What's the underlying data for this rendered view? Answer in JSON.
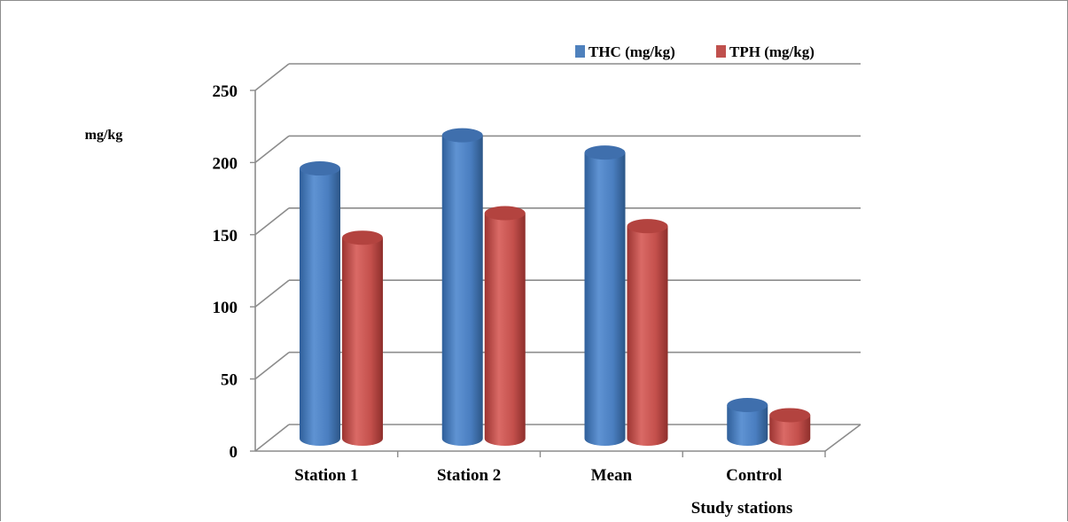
{
  "chart_data": {
    "type": "bar",
    "title": "",
    "xlabel": "Study stations",
    "ylabel": "mg/kg",
    "categories": [
      "Station 1",
      "Station 2",
      "Mean",
      "Control"
    ],
    "series": [
      {
        "name": "THC (mg/kg)",
        "values": [
          191,
          214,
          202,
          27
        ],
        "color": "#4f81bd"
      },
      {
        "name": "TPH (mg/kg)",
        "values": [
          143,
          160,
          151,
          20
        ],
        "color": "#c0504d"
      }
    ],
    "ylim": [
      0,
      250
    ],
    "y_ticks": [
      "0",
      "50",
      "100",
      "150",
      "200",
      "250"
    ],
    "grid": true,
    "legend_position": "top-right",
    "style": "3d-cylinder"
  }
}
